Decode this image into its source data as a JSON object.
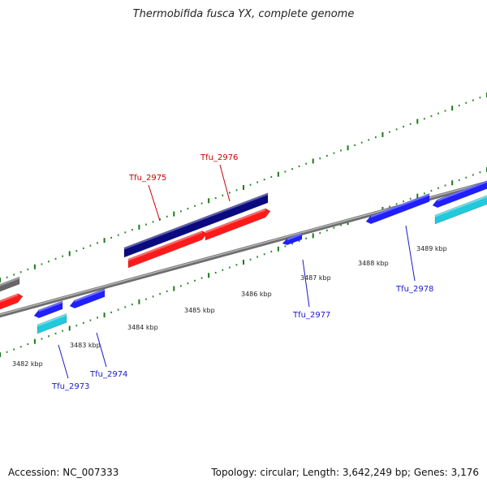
{
  "title": "Thermobifida fusca YX, complete genome",
  "footer": {
    "accession": "Accession: NC_007333",
    "stats": "Topology: circular; Length: 3,642,249 bp; Genes: 3,176"
  },
  "colors": {
    "backbone": "#8a8a8a",
    "tick_major": "#1a7a1a",
    "tick_minor": "#2e8b2e",
    "forward_cds": "#ff1a1a",
    "forward_gene": "#0a0a80",
    "reverse_cds": "#1f1fff",
    "reverse_gene": "#22c8dc",
    "forward_label": "#cc0000",
    "reverse_label": "#1a1acc",
    "partial_gray": "#666666"
  },
  "scale": {
    "unit": "kbp",
    "labels": [
      "3482 kbp",
      "3483 kbp",
      "3484 kbp",
      "3485 kbp",
      "3486 kbp",
      "3487 kbp",
      "3488 kbp",
      "3489 kbp"
    ]
  },
  "genes": [
    {
      "id": "Tfu_2973",
      "label": "Tfu_2973",
      "strand": "reverse"
    },
    {
      "id": "Tfu_2974",
      "label": "Tfu_2974",
      "strand": "reverse"
    },
    {
      "id": "Tfu_2975",
      "label": "Tfu_2975",
      "strand": "forward"
    },
    {
      "id": "Tfu_2976",
      "label": "Tfu_2976",
      "strand": "forward"
    },
    {
      "id": "Tfu_2977",
      "label": "Tfu_2977",
      "strand": "reverse"
    },
    {
      "id": "Tfu_2978",
      "label": "Tfu_2978",
      "strand": "reverse"
    }
  ]
}
